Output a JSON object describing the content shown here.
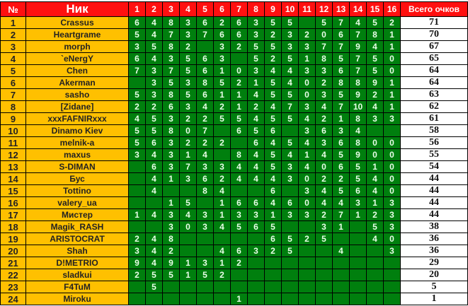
{
  "header": {
    "pos": "№",
    "nick": "Ник",
    "rounds": [
      "1",
      "2",
      "3",
      "4",
      "5",
      "6",
      "7",
      "8",
      "9",
      "10",
      "11",
      "12",
      "13",
      "14",
      "15",
      "16"
    ],
    "total": "Всего очков"
  },
  "colors": {
    "header": "#ff1010",
    "name_cells": "#ffc000",
    "score_cells": "#007f0e",
    "total_cells": "#ffffff"
  },
  "rows": [
    {
      "pos": "1",
      "nick": "Crassus",
      "scores": [
        "6",
        "4",
        "8",
        "3",
        "6",
        "2",
        "6",
        "3",
        "5",
        "5",
        "",
        "5",
        "7",
        "4",
        "5",
        "2"
      ],
      "total": "71"
    },
    {
      "pos": "2",
      "nick": "Heartgrame",
      "scores": [
        "5",
        "4",
        "7",
        "3",
        "7",
        "6",
        "6",
        "3",
        "2",
        "3",
        "2",
        "0",
        "6",
        "7",
        "8",
        "1"
      ],
      "total": "70"
    },
    {
      "pos": "3",
      "nick": "morph",
      "scores": [
        "3",
        "5",
        "8",
        "2",
        "",
        "3",
        "2",
        "5",
        "5",
        "3",
        "3",
        "7",
        "7",
        "9",
        "4",
        "1"
      ],
      "total": "67"
    },
    {
      "pos": "4",
      "nick": "`eNergY",
      "scores": [
        "6",
        "4",
        "3",
        "5",
        "6",
        "3",
        "",
        "5",
        "2",
        "5",
        "1",
        "8",
        "5",
        "7",
        "5",
        "0"
      ],
      "total": "65"
    },
    {
      "pos": "5",
      "nick": "Chen",
      "scores": [
        "7",
        "3",
        "7",
        "5",
        "6",
        "1",
        "0",
        "3",
        "4",
        "4",
        "3",
        "3",
        "6",
        "7",
        "5",
        "0"
      ],
      "total": "64"
    },
    {
      "pos": "6",
      "nick": "Akerman",
      "scores": [
        "",
        "3",
        "5",
        "3",
        "8",
        "5",
        "2",
        "1",
        "5",
        "4",
        "0",
        "2",
        "8",
        "8",
        "9",
        "1"
      ],
      "total": "64"
    },
    {
      "pos": "7",
      "nick": "sasho",
      "scores": [
        "5",
        "3",
        "8",
        "5",
        "6",
        "1",
        "1",
        "4",
        "5",
        "5",
        "0",
        "3",
        "5",
        "9",
        "2",
        "1"
      ],
      "total": "63"
    },
    {
      "pos": "8",
      "nick": "[Zidane]",
      "scores": [
        "2",
        "2",
        "6",
        "3",
        "4",
        "2",
        "1",
        "2",
        "4",
        "7",
        "3",
        "4",
        "7",
        "10",
        "4",
        "1"
      ],
      "total": "62"
    },
    {
      "pos": "9",
      "nick": "xxxFAFNIRxxx",
      "scores": [
        "4",
        "5",
        "3",
        "2",
        "2",
        "5",
        "5",
        "4",
        "5",
        "5",
        "4",
        "2",
        "1",
        "8",
        "3",
        "3"
      ],
      "total": "61"
    },
    {
      "pos": "10",
      "nick": "Dinamo Kiev",
      "scores": [
        "5",
        "5",
        "8",
        "0",
        "7",
        "",
        "6",
        "5",
        "6",
        "",
        "3",
        "6",
        "3",
        "4",
        "",
        ""
      ],
      "total": "58"
    },
    {
      "pos": "11",
      "nick": "melnik-a",
      "scores": [
        "5",
        "6",
        "3",
        "2",
        "2",
        "2",
        "",
        "6",
        "4",
        "5",
        "4",
        "3",
        "6",
        "8",
        "0",
        "0"
      ],
      "total": "56"
    },
    {
      "pos": "12",
      "nick": "maxus",
      "scores": [
        "3",
        "4",
        "3",
        "1",
        "4",
        "",
        "8",
        "4",
        "5",
        "4",
        "1",
        "4",
        "5",
        "9",
        "0",
        "0"
      ],
      "total": "55"
    },
    {
      "pos": "13",
      "nick": "S-DIMAN",
      "scores": [
        "",
        "6",
        "3",
        "7",
        "3",
        "3",
        "4",
        "4",
        "5",
        "3",
        "4",
        "0",
        "6",
        "5",
        "1",
        "0"
      ],
      "total": "54"
    },
    {
      "pos": "14",
      "nick": "Бус",
      "scores": [
        "",
        "4",
        "1",
        "3",
        "6",
        "2",
        "4",
        "4",
        "4",
        "3",
        "0",
        "2",
        "2",
        "5",
        "4",
        "0"
      ],
      "total": "44"
    },
    {
      "pos": "15",
      "nick": "Tottino",
      "scores": [
        "",
        "4",
        "",
        "",
        "8",
        "4",
        "",
        "",
        "6",
        "",
        "3",
        "4",
        "5",
        "6",
        "4",
        "0"
      ],
      "total": "44"
    },
    {
      "pos": "16",
      "nick": "valery_ua",
      "scores": [
        "",
        "",
        "1",
        "5",
        "",
        "1",
        "6",
        "6",
        "4",
        "6",
        "0",
        "4",
        "4",
        "3",
        "1",
        "3"
      ],
      "total": "44"
    },
    {
      "pos": "17",
      "nick": "Мистер",
      "scores": [
        "1",
        "4",
        "3",
        "4",
        "3",
        "1",
        "3",
        "3",
        "1",
        "3",
        "3",
        "2",
        "7",
        "1",
        "2",
        "3"
      ],
      "total": "44"
    },
    {
      "pos": "18",
      "nick": "Magik_RASH",
      "scores": [
        "",
        "",
        "3",
        "0",
        "3",
        "4",
        "5",
        "6",
        "5",
        "",
        "",
        "3",
        "1",
        "",
        "5",
        "3"
      ],
      "total": "38"
    },
    {
      "pos": "19",
      "nick": "ARISTOCRAT",
      "scores": [
        "2",
        "4",
        "8",
        "",
        "",
        "",
        "",
        "",
        "6",
        "5",
        "2",
        "5",
        "",
        "",
        "4",
        "0"
      ],
      "total": "36"
    },
    {
      "pos": "20",
      "nick": "Shah",
      "scores": [
        "3",
        "4",
        "2",
        "",
        "",
        "4",
        "6",
        "3",
        "2",
        "5",
        "",
        "",
        "4",
        "",
        "",
        "3"
      ],
      "total": "36"
    },
    {
      "pos": "21",
      "nick": "D!METRIO",
      "scores": [
        "9",
        "4",
        "9",
        "1",
        "3",
        "1",
        "2",
        "",
        "",
        "",
        "",
        "",
        "",
        "",
        "",
        ""
      ],
      "total": "29"
    },
    {
      "pos": "22",
      "nick": "sladkui",
      "scores": [
        "2",
        "5",
        "5",
        "1",
        "5",
        "2",
        "",
        "",
        "",
        "",
        "",
        "",
        "",
        "",
        "",
        ""
      ],
      "total": "20"
    },
    {
      "pos": "23",
      "nick": "F4TuM",
      "scores": [
        "",
        "5",
        "",
        "",
        "",
        "",
        "",
        "",
        "",
        "",
        "",
        "",
        "",
        "",
        "",
        ""
      ],
      "total": "5"
    },
    {
      "pos": "24",
      "nick": "Miroku",
      "scores": [
        "",
        "",
        "",
        "",
        "",
        "",
        "1",
        "",
        "",
        "",
        "",
        "",
        "",
        "",
        "",
        ""
      ],
      "total": "1"
    }
  ]
}
